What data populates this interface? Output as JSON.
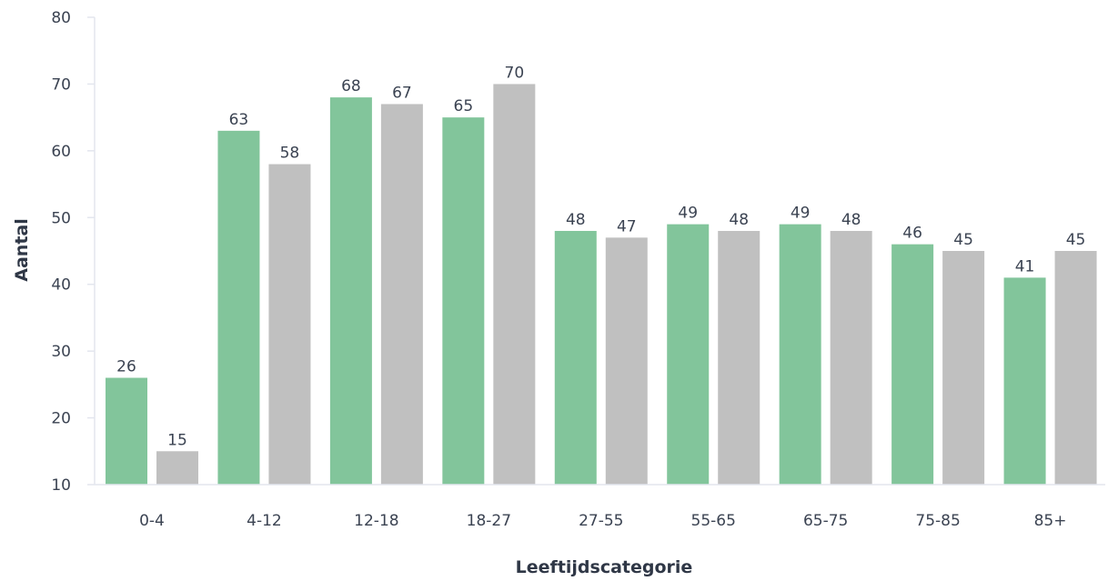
{
  "chart_data": {
    "type": "bar",
    "title": "",
    "xlabel": "Leeftijdscategorie",
    "ylabel": "Aantal",
    "ylim": [
      10,
      80
    ],
    "yticks": [
      10,
      20,
      30,
      40,
      50,
      60,
      70,
      80
    ],
    "grid": false,
    "categories": [
      "0-4",
      "4-12",
      "12-18",
      "18-27",
      "27-55",
      "55-65",
      "65-75",
      "75-85",
      "85+"
    ],
    "series": [
      {
        "color": "#82c59b",
        "values": [
          26,
          63,
          68,
          65,
          48,
          49,
          49,
          46,
          41
        ]
      },
      {
        "color": "#c0c0c0",
        "values": [
          15,
          58,
          67,
          70,
          47,
          48,
          48,
          45,
          45
        ]
      }
    ]
  }
}
